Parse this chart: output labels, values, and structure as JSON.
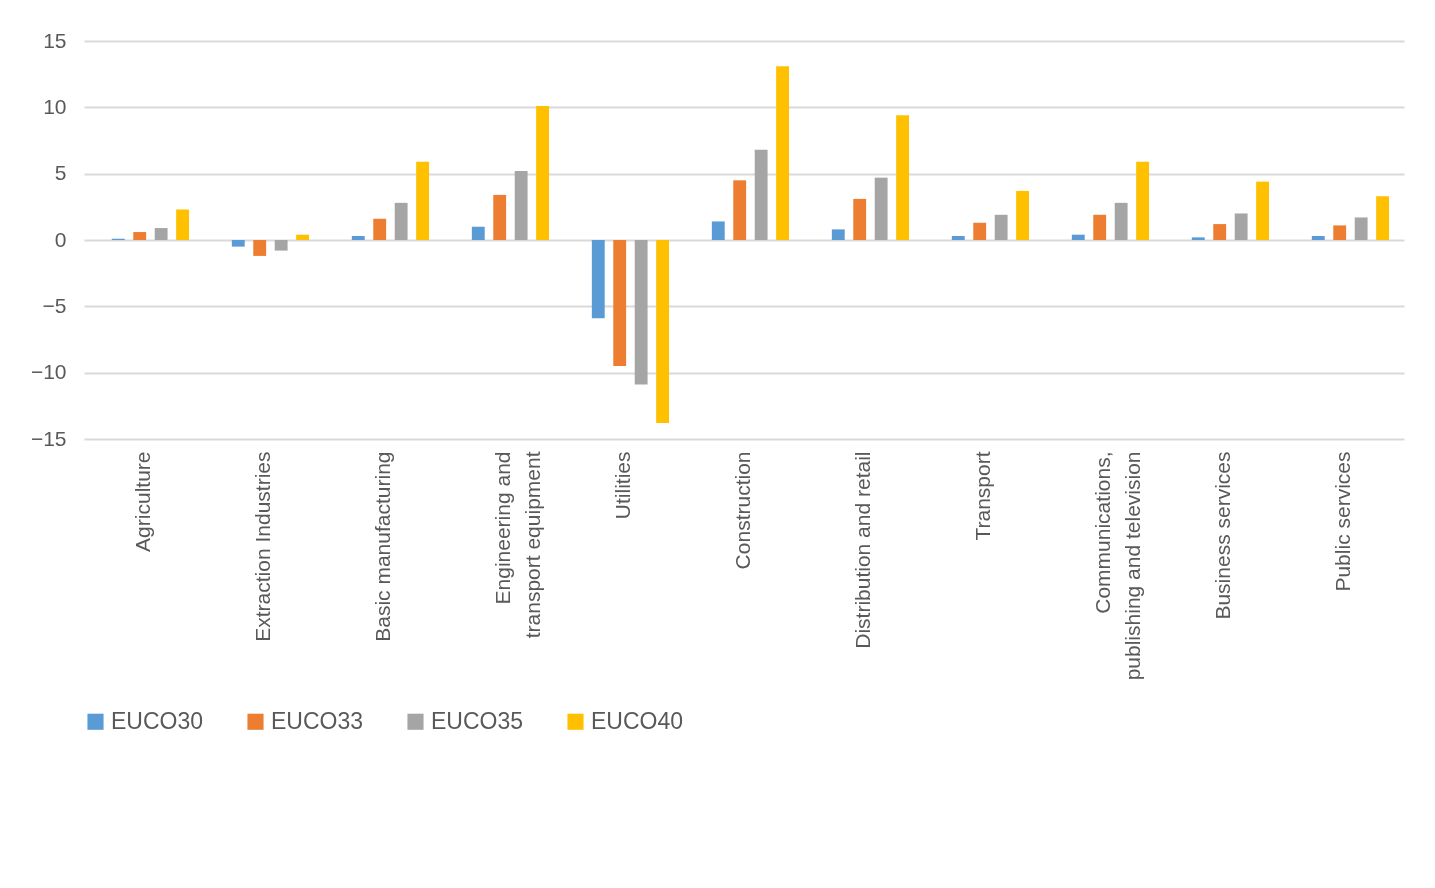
{
  "chart_data": {
    "type": "bar",
    "categories": [
      "Agriculture",
      "Extraction Industries",
      "Basic manufacturing",
      "Engineering and transport equipment",
      "Utilities",
      "Construction",
      "Distribution and retail",
      "Transport",
      "Communications, publishing and television",
      "Business services",
      "Public services"
    ],
    "series": [
      {
        "name": "EUCO30",
        "color": "#5b9bd5",
        "values": [
          0.1,
          -0.5,
          0.3,
          1.0,
          -5.9,
          1.4,
          0.8,
          0.3,
          0.4,
          0.2,
          0.3
        ]
      },
      {
        "name": "EUCO33",
        "color": "#ed7d31",
        "values": [
          0.6,
          -1.2,
          1.6,
          3.4,
          -9.5,
          4.5,
          3.1,
          1.3,
          1.9,
          1.2,
          1.1
        ]
      },
      {
        "name": "EUCO35",
        "color": "#a5a5a5",
        "values": [
          0.9,
          -0.8,
          2.8,
          5.2,
          -10.9,
          6.8,
          4.7,
          1.9,
          2.8,
          2.0,
          1.7
        ]
      },
      {
        "name": "EUCO40",
        "color": "#ffc000",
        "values": [
          2.3,
          0.4,
          5.9,
          10.1,
          -13.8,
          13.1,
          9.4,
          3.7,
          5.9,
          4.4,
          3.3
        ]
      }
    ],
    "ylim": [
      -15,
      15
    ],
    "yticks": [
      -15,
      -10,
      -5,
      0,
      5,
      10,
      15
    ],
    "grid": "y",
    "legend": "bottom"
  }
}
